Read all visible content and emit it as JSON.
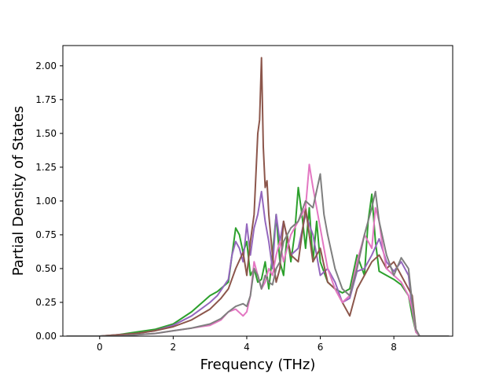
{
  "chart_data": {
    "type": "line",
    "title": "",
    "xlabel": "Frequency (THz)",
    "ylabel": "Partial Density of States",
    "xlim": [
      -1.0,
      9.6
    ],
    "ylim": [
      0.0,
      2.15
    ],
    "xticks": [
      0,
      2,
      4,
      6,
      8
    ],
    "xtick_labels": [
      "0",
      "2",
      "4",
      "6",
      "8"
    ],
    "yticks": [
      0.0,
      0.25,
      0.5,
      0.75,
      1.0,
      1.25,
      1.5,
      1.75,
      2.0
    ],
    "ytick_labels": [
      "0.00",
      "0.25",
      "0.50",
      "0.75",
      "1.00",
      "1.25",
      "1.50",
      "1.75",
      "2.00"
    ],
    "grid": false,
    "legend": "none",
    "series": [
      {
        "color": "#2ca02c",
        "x": [
          -0.9,
          0,
          0.5,
          1,
          1.5,
          2,
          2.5,
          3,
          3.2,
          3.5,
          3.6,
          3.7,
          3.8,
          3.9,
          4.0,
          4.1,
          4.2,
          4.3,
          4.4,
          4.5,
          4.6,
          4.7,
          4.8,
          4.9,
          5.0,
          5.1,
          5.2,
          5.3,
          5.4,
          5.5,
          5.6,
          5.7,
          5.8,
          5.9,
          6.0,
          6.2,
          6.4,
          6.6,
          6.8,
          7.0,
          7.2,
          7.3,
          7.4,
          7.5,
          7.6,
          7.8,
          8.0,
          8.2,
          8.4,
          8.5,
          8.6,
          8.7,
          9.5
        ],
        "y": [
          0,
          0,
          0.01,
          0.03,
          0.05,
          0.09,
          0.18,
          0.3,
          0.33,
          0.4,
          0.6,
          0.8,
          0.75,
          0.62,
          0.7,
          0.45,
          0.5,
          0.4,
          0.42,
          0.55,
          0.35,
          0.6,
          0.9,
          0.55,
          0.45,
          0.75,
          0.55,
          0.75,
          1.1,
          0.9,
          0.65,
          0.95,
          0.55,
          0.85,
          0.55,
          0.4,
          0.35,
          0.32,
          0.35,
          0.6,
          0.45,
          0.85,
          1.05,
          0.7,
          0.48,
          0.45,
          0.42,
          0.38,
          0.3,
          0.15,
          0.03,
          0,
          0
        ]
      },
      {
        "color": "#9467bd",
        "x": [
          -0.9,
          0,
          0.5,
          1,
          1.5,
          2,
          2.5,
          3,
          3.2,
          3.4,
          3.5,
          3.6,
          3.7,
          3.8,
          3.9,
          4.0,
          4.1,
          4.2,
          4.3,
          4.4,
          4.5,
          4.6,
          4.7,
          4.8,
          4.9,
          5.0,
          5.2,
          5.4,
          5.6,
          5.8,
          6.0,
          6.2,
          6.4,
          6.6,
          6.8,
          7.0,
          7.2,
          7.4,
          7.6,
          7.8,
          8.0,
          8.2,
          8.4,
          8.5,
          8.6,
          8.7,
          9.5
        ],
        "y": [
          0,
          0,
          0.01,
          0.02,
          0.04,
          0.08,
          0.15,
          0.25,
          0.3,
          0.38,
          0.42,
          0.6,
          0.7,
          0.65,
          0.55,
          0.83,
          0.6,
          0.8,
          0.9,
          1.07,
          0.85,
          0.7,
          0.5,
          0.9,
          0.7,
          0.85,
          0.6,
          0.65,
          0.9,
          0.75,
          0.45,
          0.5,
          0.4,
          0.25,
          0.28,
          0.48,
          0.5,
          0.6,
          0.72,
          0.55,
          0.48,
          0.55,
          0.45,
          0.2,
          0.04,
          0,
          0
        ]
      },
      {
        "color": "#8c564b",
        "x": [
          -0.9,
          0,
          0.5,
          1,
          1.5,
          2,
          2.5,
          3,
          3.3,
          3.5,
          3.7,
          3.9,
          4.0,
          4.1,
          4.2,
          4.3,
          4.35,
          4.4,
          4.45,
          4.5,
          4.55,
          4.6,
          4.7,
          4.8,
          4.9,
          5.0,
          5.2,
          5.4,
          5.5,
          5.6,
          5.8,
          6.0,
          6.2,
          6.4,
          6.6,
          6.8,
          7.0,
          7.2,
          7.4,
          7.6,
          7.8,
          8.0,
          8.2,
          8.4,
          8.5,
          8.6,
          8.7,
          9.5
        ],
        "y": [
          0,
          0,
          0.01,
          0.02,
          0.04,
          0.07,
          0.12,
          0.2,
          0.28,
          0.35,
          0.5,
          0.62,
          0.45,
          0.7,
          0.9,
          1.5,
          1.6,
          2.06,
          1.4,
          1.1,
          1.15,
          0.9,
          0.6,
          0.4,
          0.5,
          0.85,
          0.6,
          0.55,
          0.75,
          0.95,
          0.55,
          0.65,
          0.4,
          0.35,
          0.25,
          0.15,
          0.35,
          0.45,
          0.55,
          0.6,
          0.5,
          0.55,
          0.45,
          0.35,
          0.3,
          0.05,
          0,
          0
        ]
      },
      {
        "color": "#e377c2",
        "x": [
          -0.9,
          0,
          0.5,
          1,
          1.5,
          2,
          2.5,
          3,
          3.3,
          3.5,
          3.7,
          3.9,
          4.0,
          4.1,
          4.2,
          4.3,
          4.4,
          4.5,
          4.6,
          4.7,
          4.8,
          4.9,
          5.0,
          5.2,
          5.4,
          5.6,
          5.7,
          5.8,
          5.9,
          6.0,
          6.2,
          6.4,
          6.6,
          6.8,
          7.0,
          7.2,
          7.4,
          7.5,
          7.6,
          7.7,
          7.8,
          8.0,
          8.2,
          8.4,
          8.5,
          8.6,
          8.7,
          9.5
        ],
        "y": [
          0,
          0,
          0.0,
          0.01,
          0.02,
          0.04,
          0.06,
          0.08,
          0.12,
          0.18,
          0.2,
          0.15,
          0.18,
          0.3,
          0.55,
          0.45,
          0.35,
          0.4,
          0.5,
          0.45,
          0.6,
          0.7,
          0.55,
          0.75,
          0.85,
          0.95,
          1.27,
          1.1,
          0.95,
          0.8,
          0.5,
          0.35,
          0.25,
          0.3,
          0.55,
          0.75,
          0.65,
          0.95,
          0.85,
          0.65,
          0.5,
          0.45,
          0.4,
          0.3,
          0.2,
          0.03,
          0,
          0
        ]
      },
      {
        "color": "#7f7f7f",
        "x": [
          -0.9,
          0,
          0.5,
          1,
          1.5,
          2,
          2.5,
          3,
          3.3,
          3.5,
          3.7,
          3.9,
          4.0,
          4.1,
          4.2,
          4.3,
          4.4,
          4.5,
          4.6,
          4.7,
          4.8,
          4.9,
          5.0,
          5.2,
          5.4,
          5.6,
          5.8,
          6.0,
          6.1,
          6.2,
          6.4,
          6.6,
          6.8,
          7.0,
          7.2,
          7.4,
          7.5,
          7.6,
          7.8,
          8.0,
          8.2,
          8.4,
          8.5,
          8.6,
          8.7,
          9.5
        ],
        "y": [
          0,
          0,
          0.0,
          0.01,
          0.02,
          0.04,
          0.06,
          0.09,
          0.13,
          0.18,
          0.22,
          0.24,
          0.22,
          0.3,
          0.5,
          0.45,
          0.35,
          0.45,
          0.4,
          0.38,
          0.5,
          0.55,
          0.7,
          0.8,
          0.85,
          1.0,
          0.95,
          1.2,
          0.9,
          0.75,
          0.5,
          0.35,
          0.3,
          0.5,
          0.75,
          0.95,
          1.07,
          0.85,
          0.6,
          0.45,
          0.58,
          0.5,
          0.25,
          0.05,
          0,
          0
        ]
      }
    ]
  }
}
